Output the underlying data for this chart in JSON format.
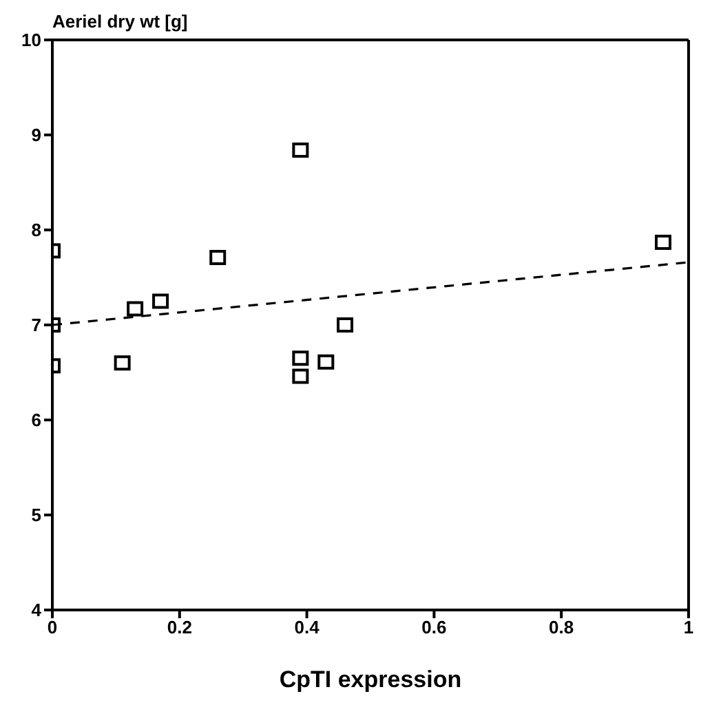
{
  "chart_data": {
    "type": "scatter",
    "ylabel": "Aeriel dry wt [g]",
    "xlabel": "CpTI expression",
    "xlim": [
      0,
      1
    ],
    "xticks": [
      0,
      0.2,
      0.4,
      0.6,
      0.8,
      1
    ],
    "ylim": [
      4,
      10
    ],
    "yticks": [
      4,
      5,
      6,
      7,
      8,
      9,
      10
    ],
    "marker": "square",
    "series": [
      {
        "color": "#000000",
        "x": [
          0,
          0,
          0,
          0.11,
          0.13,
          0.17,
          0.26,
          0.39,
          0.39,
          0.39,
          0.43,
          0.46,
          0.96
        ],
        "values": [
          7.78,
          7.0,
          6.57,
          6.6,
          7.17,
          7.25,
          7.71,
          8.84,
          6.65,
          6.46,
          6.61,
          7.0,
          7.87
        ]
      },
      {
        "type": "line",
        "color": "#000000",
        "x": [
          0,
          1
        ],
        "values": [
          7.0,
          7.66
        ],
        "line_style": "dashed",
        "marker": "none"
      }
    ]
  }
}
